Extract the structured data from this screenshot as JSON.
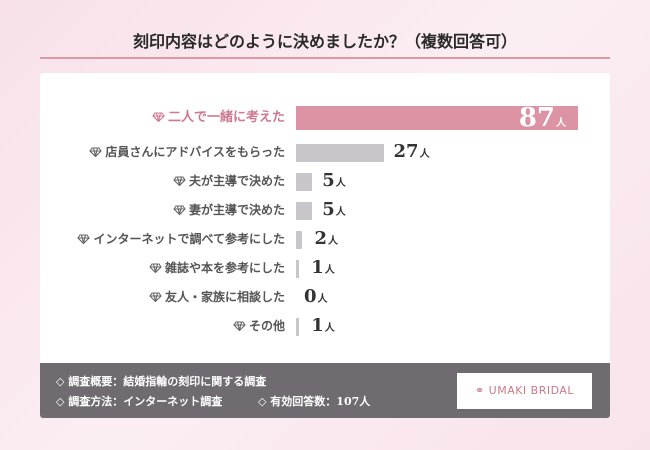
{
  "title": "刻印内容はどのように決めましたか？（複数回答可）",
  "chart_data": {
    "type": "bar",
    "orientation": "horizontal",
    "title": "刻印内容はどのように決めましたか？（複数回答可）",
    "categories": [
      "二人で一緒に考えた",
      "店員さんにアドバイスをもらった",
      "夫が主導で決めた",
      "妻が主導で決めた",
      "インターネットで調べて参考にした",
      "雑誌や本を参考にした",
      "友人・家族に相談した",
      "その他"
    ],
    "values": [
      87,
      27,
      5,
      5,
      2,
      1,
      0,
      1
    ],
    "value_labels": [
      "87",
      "27",
      "5",
      "5",
      "2",
      "1",
      "0",
      "1"
    ],
    "unit": "人",
    "xlim": [
      0,
      87
    ],
    "grid": false,
    "highlight_index": 0,
    "colors": {
      "highlight": "#dc93a4",
      "default": "#c8c5cb",
      "highlight_label": "#d0788e"
    }
  },
  "icons": {
    "category": "diamond-icon"
  },
  "footer": {
    "line1": "◇ 調査概要：結婚指輪の刻印に関する調査",
    "line2a": "◇ 調査方法：インターネット調査",
    "line2b": "◇ 有効回答数：107人",
    "logo": "UMAKI BRIDAL"
  }
}
